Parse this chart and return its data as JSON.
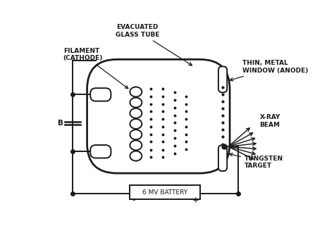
{
  "bg_color": "#ffffff",
  "line_color": "#1a1a1a",
  "labels": {
    "evacuated_glass_tube": "EVACUATED\nGLASS TUBE",
    "filament_cathode": "FILAMENT\n(CATHODE)",
    "thin_metal_window": "THIN, METAL\nWINDOW (ANODE)",
    "xray_beam": "X-RAY\nBEAM",
    "tungsten_target": "TUNGSTEN\nTARGET",
    "battery": "6 MV BATTERY",
    "B_label": "B",
    "minus": "-",
    "plus": "+"
  },
  "fontsize_labels": 6.5,
  "lw": 1.4
}
